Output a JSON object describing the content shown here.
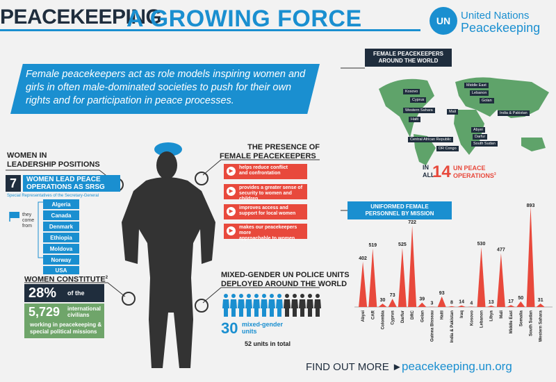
{
  "header": {
    "title_part1": "PEACEKEEPING",
    "title_part2": "A GROWING FORCE",
    "logo_text": "UN",
    "org_line1": "United Nations",
    "org_line2": "Peacekeeping"
  },
  "intro": "Female peacekeepers act as role models inspiring women and girls in often male-dominated societies to push for their own rights and for participation in peace processes.",
  "leadership": {
    "heading_line1": "WOMEN IN",
    "heading_line2": "LEADERSHIP POSITIONS",
    "count": "7",
    "label_line1": "WOMEN LEAD PEACE",
    "label_line2": "OPERATIONS AS SRSG",
    "srsg_note": "Special Representatives of the Secretary-General",
    "they_come_from": "they come from",
    "countries": [
      "Algeria",
      "Canada",
      "Denmark",
      "Ethiopia",
      "Moldova",
      "Norway",
      "USA"
    ]
  },
  "women_constitute": {
    "heading": "WOMEN CONSTITUTE",
    "footnote": "2",
    "percent": "28%",
    "percent_suffix": "of the",
    "number": "5,729",
    "number_label_line1": "international",
    "number_label_line2": "civilians",
    "detail_line1": "working in peacekeeping &",
    "detail_line2": "special political missions"
  },
  "presence": {
    "heading_line1": "THE PRESENCE OF",
    "heading_line2": "FEMALE PEACEKEEPERS",
    "items": [
      {
        "line1": "helps reduce conflict",
        "line2": "and confrontation"
      },
      {
        "line1": "provides a greater sense of",
        "line2": "security to women and children"
      },
      {
        "line1": "improves access and",
        "line2": "support for local women"
      },
      {
        "line1": "makes our peacekeepers more",
        "line2": "approachable to women"
      }
    ]
  },
  "police": {
    "heading_line1": "MIXED-GENDER UN POLICE UNITS",
    "heading_line2": "DEPLOYED AROUND THE WORLD",
    "mixed_count": "30",
    "mixed_label_line1": "mixed-gender",
    "mixed_label_line2": "units",
    "total": "52 units in total"
  },
  "map": {
    "heading_line1": "FEMALE PEACEKEEPERS",
    "heading_line2": "AROUND THE WORLD",
    "labels": [
      "Kosovo",
      "Middle East",
      "Cyprus",
      "Lebanon",
      "Golan",
      "Western Sahara",
      "Mali",
      "India & Pakistan",
      "Haiti",
      "Abyei",
      "Darfur",
      "Central African Republic",
      "South Sudan",
      "DR Congo"
    ],
    "in_label": "IN",
    "all_label": "ALL",
    "ops_count": "14",
    "ops_label_line1": "UN PEACE",
    "ops_label_line2": "OPERATIONS",
    "ops_footnote": "3"
  },
  "colors": {
    "accent_blue": "#1a8fd0",
    "navy": "#1f2d3d",
    "red": "#e8493c",
    "green": "#6fa56a",
    "map_green": "#5fa36a"
  },
  "chart_data": {
    "type": "area",
    "title": "UNIFORMED FEMALE PERSONNEL BY MISSION",
    "categories": [
      "Abyei",
      "CAR",
      "Colombia",
      "Cyprus",
      "Darfur",
      "DRC",
      "Golan",
      "Guinea Bisseau",
      "Haiti",
      "India & Pakistan",
      "Iraq",
      "Kosovo",
      "Lebanon",
      "Libya",
      "Mali",
      "Middle East",
      "Somalia",
      "South Sudan",
      "Western Sahara"
    ],
    "values": [
      402,
      519,
      30,
      73,
      525,
      722,
      39,
      3,
      93,
      8,
      14,
      4,
      530,
      13,
      477,
      17,
      50,
      893,
      31
    ],
    "ylim": [
      0,
      900
    ],
    "color": "#e8493c"
  },
  "footer": {
    "find_label": "FIND OUT MORE ►",
    "url": "peacekeeping.un.org"
  }
}
